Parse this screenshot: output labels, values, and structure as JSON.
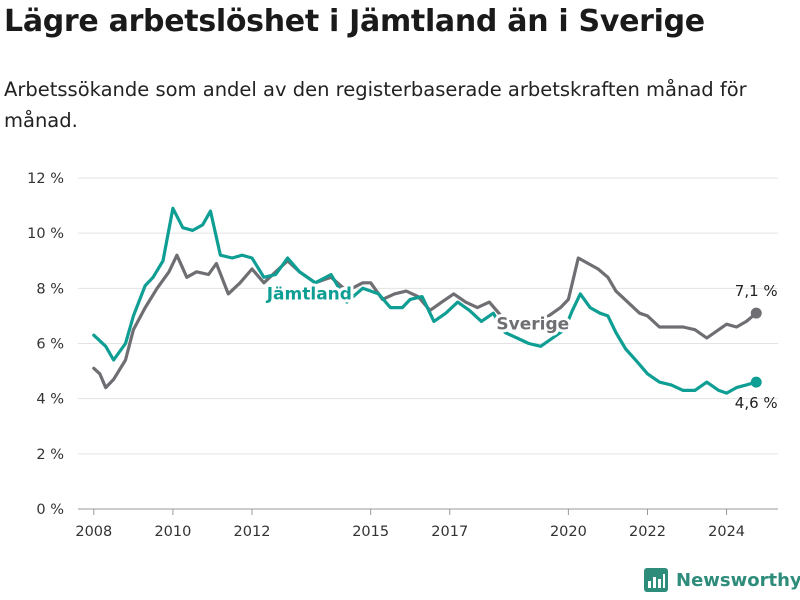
{
  "header": {
    "title": "Lägre arbetslöshet i Jämtland än i Sverige",
    "subtitle": "Arbetssökande som andel av den registerbaserade arbetskraften månad för månad."
  },
  "brand": {
    "name": "Newsworthy",
    "icon": "bar-chart-logo-icon",
    "color": "#2e8c7a"
  },
  "chart_data": {
    "type": "line",
    "title": "Lägre arbetslöshet i Jämtland än i Sverige",
    "xlabel": "",
    "ylabel": "",
    "x_range": [
      2007.6,
      2025.3
    ],
    "ylim": [
      0,
      12
    ],
    "y_ticks": [
      0,
      2,
      4,
      6,
      8,
      10,
      12
    ],
    "y_tick_labels": [
      "0 %",
      "2 %",
      "4 %",
      "6 %",
      "8 %",
      "10 %",
      "12 %"
    ],
    "x_ticks": [
      2008,
      2010,
      2012,
      2015,
      2017,
      2020,
      2022,
      2024
    ],
    "x_tick_labels": [
      "2008",
      "2010",
      "2012",
      "2015",
      "2017",
      "2020",
      "2022",
      "2024"
    ],
    "grid": true,
    "legend": "inline labels",
    "series": [
      {
        "name": "Jämtland",
        "color": "#0e9e93",
        "end_label": "4,6 %",
        "points": [
          [
            2008.0,
            6.3
          ],
          [
            2008.3,
            5.9
          ],
          [
            2008.5,
            5.4
          ],
          [
            2008.8,
            6.0
          ],
          [
            2009.0,
            7.0
          ],
          [
            2009.3,
            8.1
          ],
          [
            2009.5,
            8.4
          ],
          [
            2009.75,
            9.0
          ],
          [
            2010.0,
            10.9
          ],
          [
            2010.25,
            10.2
          ],
          [
            2010.5,
            10.1
          ],
          [
            2010.75,
            10.3
          ],
          [
            2010.95,
            10.8
          ],
          [
            2011.2,
            9.2
          ],
          [
            2011.5,
            9.1
          ],
          [
            2011.75,
            9.2
          ],
          [
            2012.0,
            9.1
          ],
          [
            2012.3,
            8.4
          ],
          [
            2012.6,
            8.5
          ],
          [
            2012.9,
            9.1
          ],
          [
            2013.2,
            8.6
          ],
          [
            2013.6,
            8.2
          ],
          [
            2014.0,
            8.5
          ],
          [
            2014.4,
            7.5
          ],
          [
            2014.8,
            8.0
          ],
          [
            2015.2,
            7.8
          ],
          [
            2015.5,
            7.3
          ],
          [
            2015.8,
            7.3
          ],
          [
            2016.0,
            7.6
          ],
          [
            2016.3,
            7.7
          ],
          [
            2016.6,
            6.8
          ],
          [
            2016.9,
            7.1
          ],
          [
            2017.2,
            7.5
          ],
          [
            2017.5,
            7.2
          ],
          [
            2017.8,
            6.8
          ],
          [
            2018.1,
            7.1
          ],
          [
            2018.4,
            6.4
          ],
          [
            2018.7,
            6.2
          ],
          [
            2019.0,
            6.0
          ],
          [
            2019.3,
            5.9
          ],
          [
            2019.6,
            6.2
          ],
          [
            2019.9,
            6.5
          ],
          [
            2020.1,
            7.2
          ],
          [
            2020.3,
            7.8
          ],
          [
            2020.55,
            7.3
          ],
          [
            2020.8,
            7.1
          ],
          [
            2021.0,
            7.0
          ],
          [
            2021.2,
            6.4
          ],
          [
            2021.45,
            5.8
          ],
          [
            2021.7,
            5.4
          ],
          [
            2022.0,
            4.9
          ],
          [
            2022.3,
            4.6
          ],
          [
            2022.6,
            4.5
          ],
          [
            2022.9,
            4.3
          ],
          [
            2023.2,
            4.3
          ],
          [
            2023.5,
            4.6
          ],
          [
            2023.8,
            4.3
          ],
          [
            2024.0,
            4.2
          ],
          [
            2024.25,
            4.4
          ],
          [
            2024.5,
            4.5
          ],
          [
            2024.75,
            4.6
          ]
        ]
      },
      {
        "name": "Sverige",
        "color": "#6e6e73",
        "end_label": "7,1 %",
        "points": [
          [
            2008.0,
            5.1
          ],
          [
            2008.15,
            4.9
          ],
          [
            2008.3,
            4.4
          ],
          [
            2008.5,
            4.7
          ],
          [
            2008.8,
            5.4
          ],
          [
            2009.0,
            6.5
          ],
          [
            2009.3,
            7.3
          ],
          [
            2009.6,
            8.0
          ],
          [
            2009.9,
            8.6
          ],
          [
            2010.1,
            9.2
          ],
          [
            2010.35,
            8.4
          ],
          [
            2010.6,
            8.6
          ],
          [
            2010.9,
            8.5
          ],
          [
            2011.1,
            8.9
          ],
          [
            2011.4,
            7.8
          ],
          [
            2011.7,
            8.2
          ],
          [
            2012.0,
            8.7
          ],
          [
            2012.3,
            8.2
          ],
          [
            2012.6,
            8.6
          ],
          [
            2012.9,
            9.0
          ],
          [
            2013.2,
            8.6
          ],
          [
            2013.6,
            8.2
          ],
          [
            2014.0,
            8.4
          ],
          [
            2014.4,
            7.9
          ],
          [
            2014.8,
            8.2
          ],
          [
            2015.0,
            8.2
          ],
          [
            2015.3,
            7.6
          ],
          [
            2015.6,
            7.8
          ],
          [
            2015.9,
            7.9
          ],
          [
            2016.2,
            7.7
          ],
          [
            2016.5,
            7.2
          ],
          [
            2016.8,
            7.5
          ],
          [
            2017.1,
            7.8
          ],
          [
            2017.4,
            7.5
          ],
          [
            2017.7,
            7.3
          ],
          [
            2018.0,
            7.5
          ],
          [
            2018.3,
            7.0
          ],
          [
            2018.6,
            6.8
          ],
          [
            2018.9,
            6.7
          ],
          [
            2019.2,
            6.8
          ],
          [
            2019.5,
            7.0
          ],
          [
            2019.8,
            7.3
          ],
          [
            2020.0,
            7.6
          ],
          [
            2020.25,
            9.1
          ],
          [
            2020.5,
            8.9
          ],
          [
            2020.75,
            8.7
          ],
          [
            2021.0,
            8.4
          ],
          [
            2021.2,
            7.9
          ],
          [
            2021.5,
            7.5
          ],
          [
            2021.8,
            7.1
          ],
          [
            2022.0,
            7.0
          ],
          [
            2022.3,
            6.6
          ],
          [
            2022.6,
            6.6
          ],
          [
            2022.9,
            6.6
          ],
          [
            2023.2,
            6.5
          ],
          [
            2023.5,
            6.2
          ],
          [
            2023.8,
            6.5
          ],
          [
            2024.0,
            6.7
          ],
          [
            2024.25,
            6.6
          ],
          [
            2024.5,
            6.8
          ],
          [
            2024.75,
            7.1
          ]
        ]
      }
    ]
  }
}
